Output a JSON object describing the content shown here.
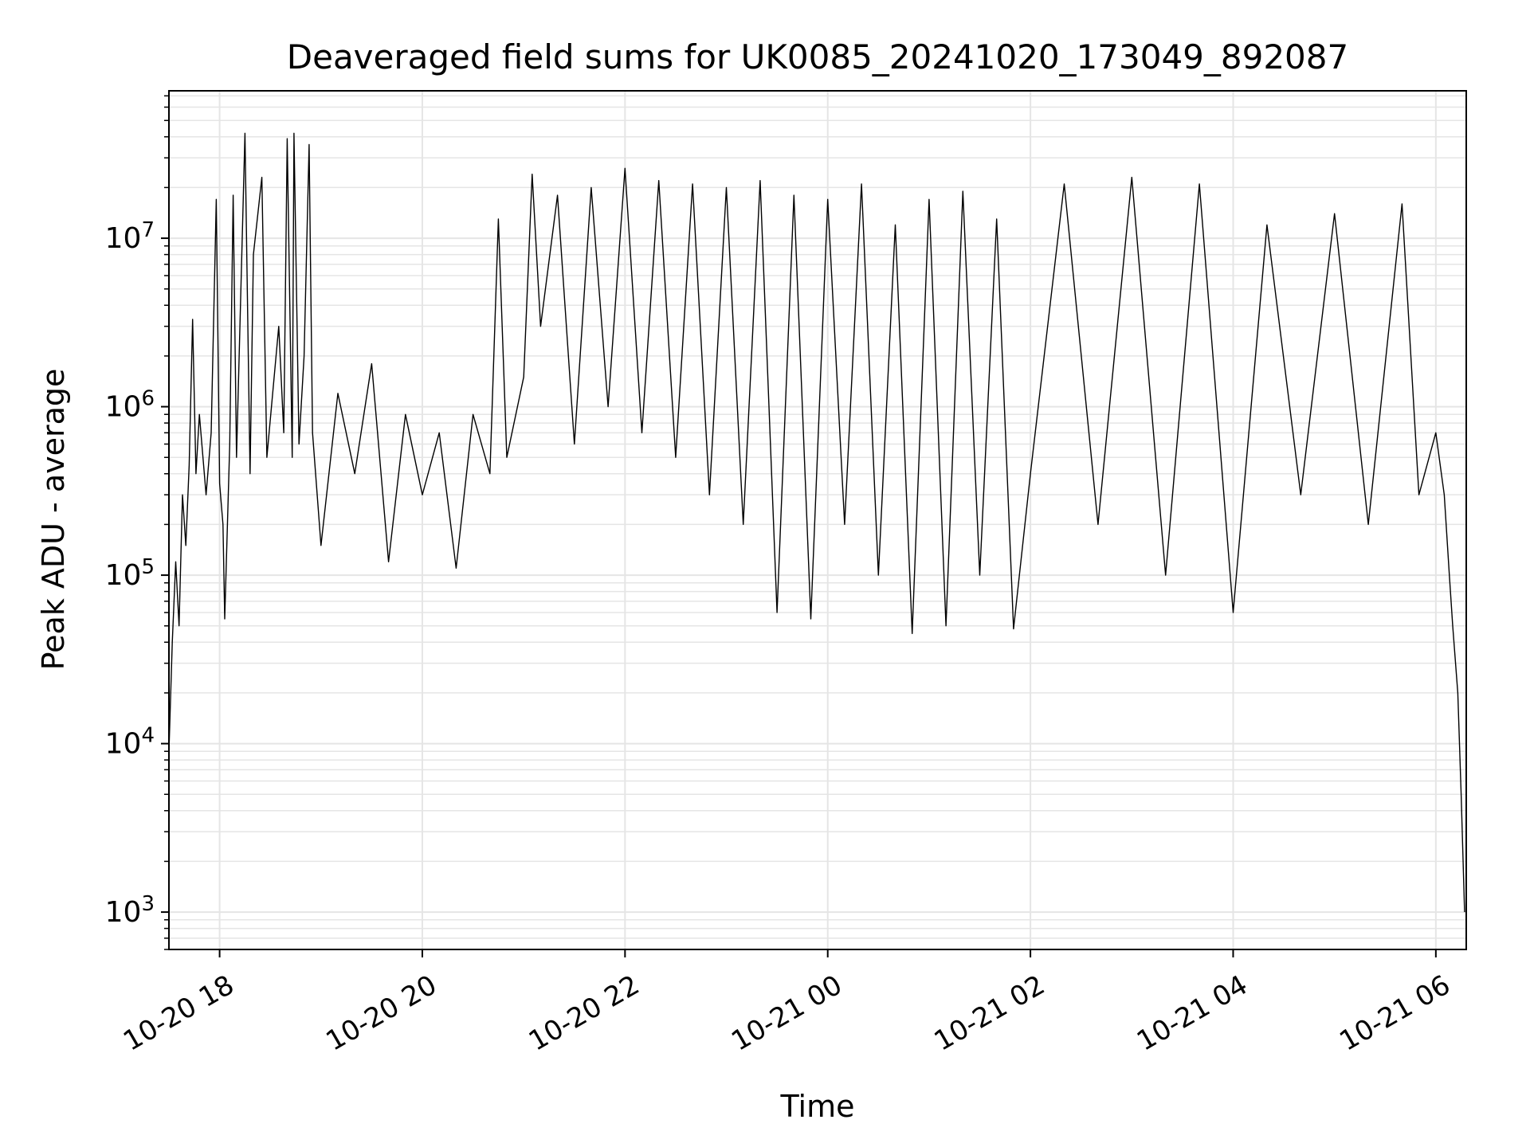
{
  "chart_data": {
    "type": "line",
    "title": "Deaveraged field sums for UK0085_20241020_173049_892087",
    "xlabel": "Time",
    "ylabel": "Peak ADU - average",
    "x_axis": {
      "kind": "datetime",
      "range": [
        "2024-10-20 17:30",
        "2024-10-21 06:18"
      ],
      "tick_labels": [
        "10-20 18",
        "10-20 20",
        "10-20 22",
        "10-21 00",
        "10-21 02",
        "10-21 04",
        "10-21 06"
      ],
      "tick_times": [
        "2024-10-20 18:00",
        "2024-10-20 20:00",
        "2024-10-20 22:00",
        "2024-10-21 00:00",
        "2024-10-21 02:00",
        "2024-10-21 04:00",
        "2024-10-21 06:00"
      ]
    },
    "y_axis": {
      "scale": "log",
      "range": [
        600,
        75000000
      ],
      "tick_values": [
        1000,
        10000,
        100000,
        1000000,
        10000000
      ],
      "tick_labels": [
        {
          "base": "10",
          "exp": "3"
        },
        {
          "base": "10",
          "exp": "4"
        },
        {
          "base": "10",
          "exp": "5"
        },
        {
          "base": "10",
          "exp": "6"
        },
        {
          "base": "10",
          "exp": "7"
        }
      ]
    },
    "grid": true,
    "minor_grid": true,
    "series_color": "#000000",
    "grid_color": "#e5e5e5",
    "series": [
      {
        "points": [
          [
            "2024-10-20 17:30",
            9000
          ],
          [
            "2024-10-20 17:32",
            40000
          ],
          [
            "2024-10-20 17:34",
            120000
          ],
          [
            "2024-10-20 17:36",
            50000
          ],
          [
            "2024-10-20 17:38",
            300000
          ],
          [
            "2024-10-20 17:40",
            150000
          ],
          [
            "2024-10-20 17:42",
            450000
          ],
          [
            "2024-10-20 17:44",
            3300000
          ],
          [
            "2024-10-20 17:46",
            400000
          ],
          [
            "2024-10-20 17:48",
            900000
          ],
          [
            "2024-10-20 17:52",
            300000
          ],
          [
            "2024-10-20 17:55",
            700000
          ],
          [
            "2024-10-20 17:58",
            17000000
          ],
          [
            "2024-10-20 18:00",
            350000
          ],
          [
            "2024-10-20 18:02",
            200000
          ],
          [
            "2024-10-20 18:03",
            55000
          ],
          [
            "2024-10-20 18:06",
            600000
          ],
          [
            "2024-10-20 18:08",
            18000000
          ],
          [
            "2024-10-20 18:10",
            500000
          ],
          [
            "2024-10-20 18:15",
            42000000
          ],
          [
            "2024-10-20 18:18",
            400000
          ],
          [
            "2024-10-20 18:20",
            8000000
          ],
          [
            "2024-10-20 18:25",
            23000000
          ],
          [
            "2024-10-20 18:28",
            500000
          ],
          [
            "2024-10-20 18:35",
            3000000
          ],
          [
            "2024-10-20 18:38",
            700000
          ],
          [
            "2024-10-20 18:40",
            39000000
          ],
          [
            "2024-10-20 18:43",
            500000
          ],
          [
            "2024-10-20 18:44",
            42000000
          ],
          [
            "2024-10-20 18:47",
            600000
          ],
          [
            "2024-10-20 18:50",
            2000000
          ],
          [
            "2024-10-20 18:53",
            36000000
          ],
          [
            "2024-10-20 18:55",
            700000
          ],
          [
            "2024-10-20 19:00",
            150000
          ],
          [
            "2024-10-20 19:10",
            1200000
          ],
          [
            "2024-10-20 19:20",
            400000
          ],
          [
            "2024-10-20 19:30",
            1800000
          ],
          [
            "2024-10-20 19:40",
            120000
          ],
          [
            "2024-10-20 19:50",
            900000
          ],
          [
            "2024-10-20 20:00",
            300000
          ],
          [
            "2024-10-20 20:10",
            700000
          ],
          [
            "2024-10-20 20:20",
            110000
          ],
          [
            "2024-10-20 20:30",
            900000
          ],
          [
            "2024-10-20 20:40",
            400000
          ],
          [
            "2024-10-20 20:45",
            13000000
          ],
          [
            "2024-10-20 20:50",
            500000
          ],
          [
            "2024-10-20 21:00",
            1500000
          ],
          [
            "2024-10-20 21:05",
            24000000
          ],
          [
            "2024-10-20 21:10",
            3000000
          ],
          [
            "2024-10-20 21:20",
            18000000
          ],
          [
            "2024-10-20 21:30",
            600000
          ],
          [
            "2024-10-20 21:40",
            20000000
          ],
          [
            "2024-10-20 21:50",
            1000000
          ],
          [
            "2024-10-20 22:00",
            26000000
          ],
          [
            "2024-10-20 22:10",
            700000
          ],
          [
            "2024-10-20 22:20",
            22000000
          ],
          [
            "2024-10-20 22:30",
            500000
          ],
          [
            "2024-10-20 22:40",
            21000000
          ],
          [
            "2024-10-20 22:50",
            300000
          ],
          [
            "2024-10-20 23:00",
            20000000
          ],
          [
            "2024-10-20 23:10",
            200000
          ],
          [
            "2024-10-20 23:20",
            22000000
          ],
          [
            "2024-10-20 23:30",
            60000
          ],
          [
            "2024-10-20 23:40",
            18000000
          ],
          [
            "2024-10-20 23:50",
            55000
          ],
          [
            "2024-10-21 00:00",
            17000000
          ],
          [
            "2024-10-21 00:10",
            200000
          ],
          [
            "2024-10-21 00:20",
            21000000
          ],
          [
            "2024-10-21 00:30",
            100000
          ],
          [
            "2024-10-21 00:40",
            12000000
          ],
          [
            "2024-10-21 00:50",
            45000
          ],
          [
            "2024-10-21 01:00",
            17000000
          ],
          [
            "2024-10-21 01:10",
            50000
          ],
          [
            "2024-10-21 01:20",
            19000000
          ],
          [
            "2024-10-21 01:30",
            100000
          ],
          [
            "2024-10-21 01:40",
            13000000
          ],
          [
            "2024-10-21 01:50",
            48000
          ],
          [
            "2024-10-21 02:00",
            400000
          ],
          [
            "2024-10-21 02:20",
            21000000
          ],
          [
            "2024-10-21 02:40",
            200000
          ],
          [
            "2024-10-21 03:00",
            23000000
          ],
          [
            "2024-10-21 03:20",
            100000
          ],
          [
            "2024-10-21 03:40",
            21000000
          ],
          [
            "2024-10-21 04:00",
            60000
          ],
          [
            "2024-10-21 04:20",
            12000000
          ],
          [
            "2024-10-21 04:40",
            300000
          ],
          [
            "2024-10-21 05:00",
            14000000
          ],
          [
            "2024-10-21 05:20",
            200000
          ],
          [
            "2024-10-21 05:40",
            16000000
          ],
          [
            "2024-10-21 05:50",
            300000
          ],
          [
            "2024-10-21 06:00",
            700000
          ],
          [
            "2024-10-21 06:05",
            300000
          ],
          [
            "2024-10-21 06:08",
            100000
          ],
          [
            "2024-10-21 06:10",
            50000
          ],
          [
            "2024-10-21 06:13",
            20000
          ],
          [
            "2024-10-21 06:15",
            5000
          ],
          [
            "2024-10-21 06:17",
            1000
          ]
        ]
      }
    ]
  }
}
